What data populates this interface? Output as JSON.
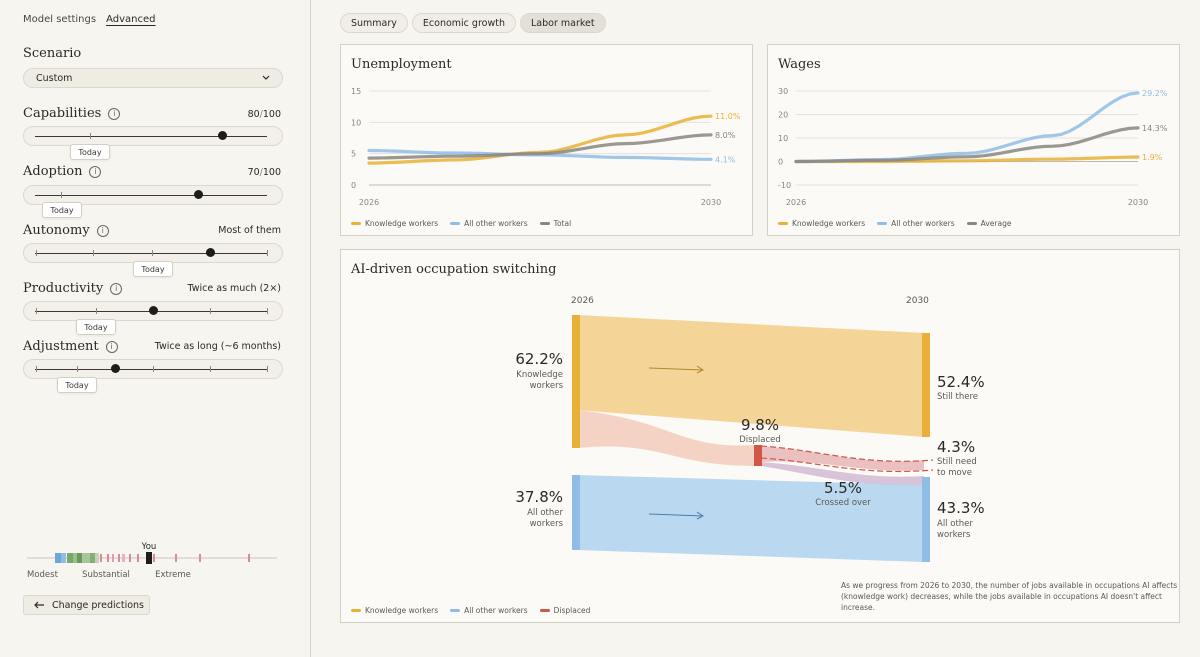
{
  "sidebar": {
    "nav": {
      "settings": "Model settings",
      "advanced": "Advanced"
    },
    "scenario": {
      "label": "Scenario",
      "value": "Custom"
    },
    "controls": [
      {
        "label": "Capabilities",
        "value_main": "80",
        "value_sep": "/",
        "value_max": "100",
        "level": 0.8,
        "today": "Today"
      },
      {
        "label": "Adoption",
        "value_main": "70",
        "value_sep": "/",
        "value_max": "100",
        "level": 0.7,
        "today": "Today"
      },
      {
        "label": "Autonomy",
        "value": "Most of them",
        "level": 0.75,
        "today": "Today"
      },
      {
        "label": "Productivity",
        "value": "Twice as much (2×)",
        "level": 0.5,
        "today": "Today"
      },
      {
        "label": "Adjustment",
        "value": "Twice as long (~6 months)",
        "level": 0.33,
        "today": "Today"
      }
    ],
    "distribution": {
      "you_label": "You",
      "labels": [
        "Modest",
        "Substantial",
        "Extreme"
      ]
    },
    "change_button": "Change predictions"
  },
  "tabs": [
    {
      "label": "Summary",
      "active": false
    },
    {
      "label": "Economic growth",
      "active": false
    },
    {
      "label": "Labor market",
      "active": true
    }
  ],
  "unemployment": {
    "title": "Unemployment",
    "chart_data": {
      "type": "line",
      "x": [
        2026,
        2027,
        2028,
        2029,
        2030
      ],
      "xticks": [
        "2026",
        "2030"
      ],
      "yticks": [
        "15",
        "10",
        "5",
        "0"
      ],
      "ylim": [
        0,
        15
      ],
      "series": [
        {
          "name": "Knowledge workers",
          "color": "#e8b036",
          "values": [
            3.5,
            4.0,
            5.2,
            8.0,
            11.0
          ],
          "end_label": "11.0%"
        },
        {
          "name": "All other workers",
          "color": "#8fbde6",
          "values": [
            5.5,
            5.1,
            4.8,
            4.4,
            4.1
          ],
          "end_label": "4.1%"
        },
        {
          "name": "Total",
          "color": "#8a8680",
          "values": [
            4.3,
            4.6,
            5.0,
            6.6,
            8.0
          ],
          "end_label": "8.0%"
        }
      ]
    }
  },
  "wages": {
    "title": "Wages",
    "chart_data": {
      "type": "line",
      "x": [
        2026,
        2027,
        2028,
        2029,
        2030
      ],
      "xticks": [
        "2026",
        "2030"
      ],
      "yticks": [
        "30",
        "20",
        "10",
        "0",
        "-10"
      ],
      "ylim": [
        -10,
        30
      ],
      "series": [
        {
          "name": "Knowledge workers",
          "color": "#e8b036",
          "values": [
            0.0,
            0.0,
            0.3,
            1.0,
            1.9
          ],
          "end_label": "1.9%"
        },
        {
          "name": "All other workers",
          "color": "#8fbde6",
          "values": [
            0.0,
            0.8,
            3.5,
            11.0,
            29.2
          ],
          "end_label": "29.2%"
        },
        {
          "name": "Average",
          "color": "#8a8680",
          "values": [
            0.0,
            0.5,
            2.0,
            6.5,
            14.3
          ],
          "end_label": "14.3%"
        }
      ]
    }
  },
  "switching": {
    "title": "AI-driven occupation switching",
    "year_start": "2026",
    "year_end": "2030",
    "left": [
      {
        "value": "62.2%",
        "label1": "Knowledge",
        "label2": "workers"
      },
      {
        "value": "37.8%",
        "label1": "All other",
        "label2": "workers"
      }
    ],
    "mid": [
      {
        "value": "9.8%",
        "label": "Displaced"
      },
      {
        "value": "5.5%",
        "label": "Crossed over"
      }
    ],
    "right": [
      {
        "value": "52.4%",
        "label1": "Still there",
        "label2": ""
      },
      {
        "value": "4.3%",
        "label1": "Still need",
        "label2": "to move"
      },
      {
        "value": "43.3%",
        "label1": "All other",
        "label2": "workers"
      }
    ],
    "legend": [
      {
        "name": "Knowledge workers",
        "color": "#e8b036"
      },
      {
        "name": "All other workers",
        "color": "#8fbde6"
      },
      {
        "name": "Displaced",
        "color": "#d0564a"
      }
    ],
    "note": "As we progress from 2026 to 2030, the number of jobs available in occupations AI affects (knowledge work) decreases, while the jobs available in occupations AI doesn't affect increase.",
    "chart_data": {
      "type": "sankey",
      "nodes": [
        "Knowledge workers 2026",
        "All other workers 2026",
        "Displaced",
        "Still there",
        "Still need to move",
        "All other workers 2030"
      ],
      "links": [
        {
          "from": "Knowledge workers",
          "to": "Still there",
          "value": 52.4
        },
        {
          "from": "Knowledge workers",
          "to": "Displaced",
          "value": 9.8
        },
        {
          "from": "Displaced",
          "to": "Still need to move",
          "value": 4.3
        },
        {
          "from": "Displaced",
          "to": "All other workers",
          "value": 5.5
        },
        {
          "from": "All other workers",
          "to": "All other workers",
          "value": 37.8
        }
      ]
    }
  },
  "colors": {
    "knowledge": "#e8b036",
    "other": "#8fbde6",
    "total": "#8a8680",
    "displaced": "#d0564a"
  }
}
